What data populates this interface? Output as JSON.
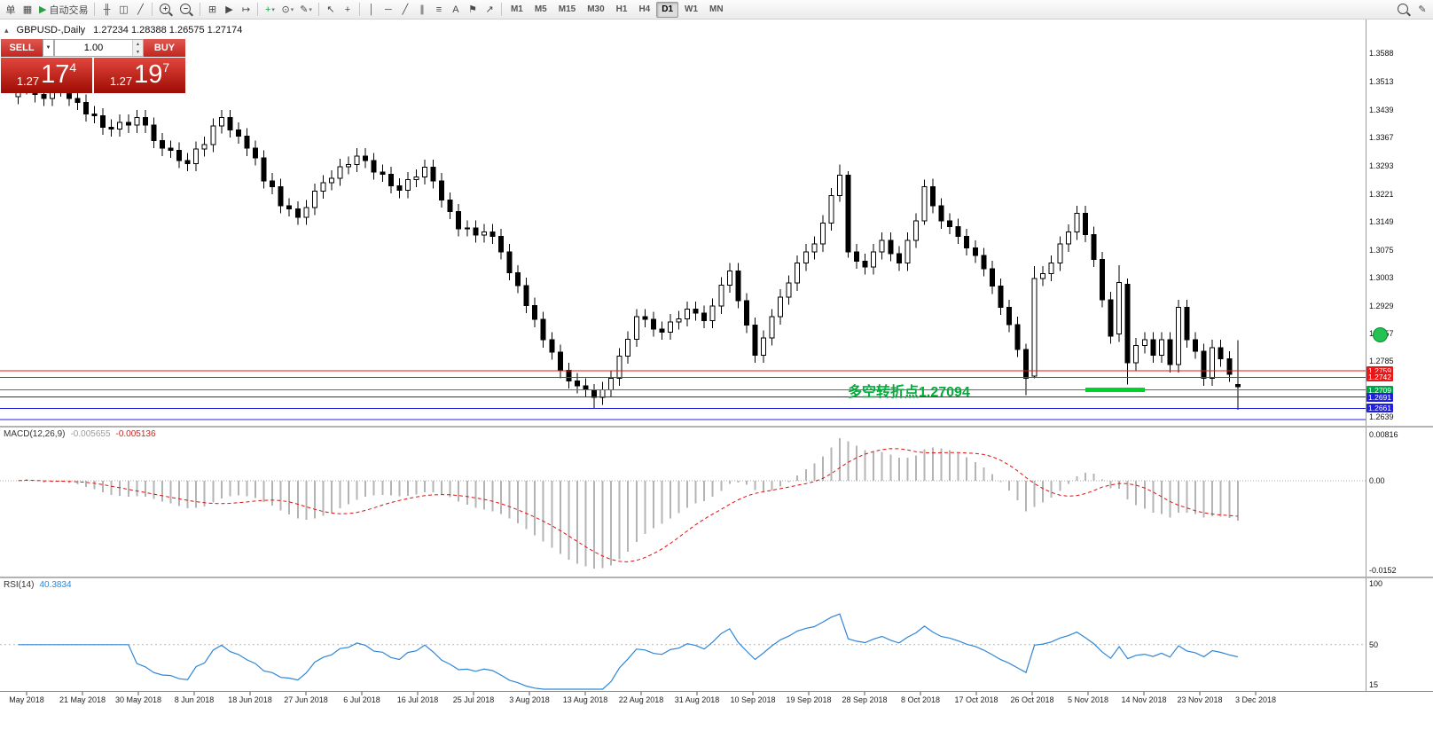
{
  "toolbar": {
    "groups": [
      {
        "items": [
          {
            "name": "new-order-button",
            "label": "单"
          },
          {
            "name": "charts-grid-icon",
            "glyph": "▦"
          },
          {
            "name": "autotrade-button",
            "glyph": "▶",
            "glyph_color": "#2e9e44",
            "label": "自动交易"
          }
        ]
      },
      {
        "items": [
          {
            "name": "bar-chart-icon",
            "glyph": "╫"
          },
          {
            "name": "candlestick-chart-icon",
            "glyph": "◫"
          },
          {
            "name": "line-chart-icon",
            "glyph": "╱"
          }
        ]
      },
      {
        "items": [
          {
            "name": "zoom-in-icon",
            "mag": "+"
          },
          {
            "name": "zoom-out-icon",
            "mag": "−"
          }
        ]
      },
      {
        "items": [
          {
            "name": "tile-windows-icon",
            "glyph": "⊞"
          },
          {
            "name": "auto-scroll-icon",
            "glyph": "▶"
          },
          {
            "name": "chart-shift-icon",
            "glyph": "↦"
          }
        ]
      },
      {
        "items": [
          {
            "name": "indicators-icon",
            "glyph": "+",
            "glyph_color": "#1e9e40",
            "dropdown": true
          },
          {
            "name": "periods-icon",
            "glyph": "⊙",
            "dropdown": true
          },
          {
            "name": "templates-icon",
            "glyph": "✎",
            "dropdown": true
          }
        ]
      },
      {
        "items": [
          {
            "name": "cursor-icon",
            "glyph": "↖"
          },
          {
            "name": "crosshair-icon",
            "glyph": "+"
          }
        ]
      },
      {
        "items": [
          {
            "name": "vline-tool-icon",
            "glyph": "│"
          },
          {
            "name": "hline-tool-icon",
            "glyph": "─"
          },
          {
            "name": "trendline-tool-icon",
            "glyph": "╱"
          },
          {
            "name": "channel-tool-icon",
            "glyph": "∥"
          },
          {
            "name": "fibonacci-tool-icon",
            "glyph": "≡"
          },
          {
            "name": "text-tool-icon",
            "glyph": "A"
          },
          {
            "name": "label-tool-icon",
            "glyph": "⚑"
          },
          {
            "name": "arrows-tool-icon",
            "glyph": "↗"
          }
        ]
      },
      {
        "kind": "tf",
        "items": [
          {
            "name": "tf-m1",
            "label": "M1"
          },
          {
            "name": "tf-m5",
            "label": "M5"
          },
          {
            "name": "tf-m15",
            "label": "M15"
          },
          {
            "name": "tf-m30",
            "label": "M30"
          },
          {
            "name": "tf-h1",
            "label": "H1"
          },
          {
            "name": "tf-h4",
            "label": "H4"
          },
          {
            "name": "tf-d1",
            "label": "D1",
            "active": true
          },
          {
            "name": "tf-w1",
            "label": "W1"
          },
          {
            "name": "tf-mn",
            "label": "MN"
          }
        ]
      },
      {
        "spacer": true,
        "items": [
          {
            "name": "search-icon",
            "mag": ""
          },
          {
            "name": "quick-edit-icon",
            "glyph": "✎"
          }
        ]
      }
    ]
  },
  "chart": {
    "symbol_label": "GBPUSD-,Daily",
    "ohlc": "1.27234 1.28388 1.26575 1.27174",
    "panel_toggle_icon": "▴",
    "trade_panel": {
      "sell_label": "SELL",
      "buy_label": "BUY",
      "volume": "1.00",
      "volume_dd_icon": "▼",
      "spin_up_icon": "▲",
      "spin_down_icon": "▼",
      "bid_small": "1.27",
      "bid_big": "17",
      "bid_sup": "4",
      "ask_small": "1.27",
      "ask_big": "19",
      "ask_sup": "7"
    },
    "annotation": {
      "text": "多空转折点1.27094",
      "color": "#00ae3a"
    },
    "highlight_segment": {
      "from_bar": 126,
      "to_bar": 133,
      "price": 1.27094,
      "color": "#00d22a"
    },
    "marker_circle_color": "#22c351",
    "price_axis_labels": [
      "1.3588",
      "1.3513",
      "1.3439",
      "1.3367",
      "1.3293",
      "1.3221",
      "1.3149",
      "1.3075",
      "1.3003",
      "1.2929",
      "1.2857",
      "1.2785",
      "1.2639"
    ],
    "hlines": [
      {
        "price": 1.2759,
        "color": "#e81717",
        "tag": true
      },
      {
        "price": 1.2742,
        "color": "#e81717",
        "tag": true
      },
      {
        "price": 1.27094,
        "color": "#00a24a",
        "tag": true
      },
      {
        "price": 1.2691,
        "color": "#2020dd",
        "tag": true
      },
      {
        "price": 1.2661,
        "color": "#2020dd",
        "tag": true
      },
      {
        "price": 1.2632,
        "color": "#2020dd",
        "tag": false
      }
    ],
    "date_labels": [
      "May 2018",
      "21 May 2018",
      "30 May 2018",
      "8 Jun 2018",
      "18 Jun 2018",
      "27 Jun 2018",
      "6 Jul 2018",
      "16 Jul 2018",
      "25 Jul 2018",
      "3 Aug 2018",
      "13 Aug 2018",
      "22 Aug 2018",
      "31 Aug 2018",
      "10 Sep 2018",
      "19 Sep 2018",
      "28 Sep 2018",
      "8 Oct 2018",
      "17 Oct 2018",
      "26 Oct 2018",
      "5 Nov 2018",
      "14 Nov 2018",
      "23 Nov 2018",
      "3 Dec 2018"
    ]
  },
  "macd": {
    "label": "MACD(12,26,9)",
    "value_main": "-0.005655",
    "value_signal": "-0.005136",
    "axis_max": "0.00816",
    "axis_zero": "0.00",
    "axis_min": "-0.0152",
    "scale_max": 0.00816,
    "scale_min": -0.0152,
    "fast": 12,
    "slow": 26,
    "signal": 9
  },
  "rsi": {
    "label": "RSI(14)",
    "value": "40.3834",
    "axis_max": "100",
    "axis_mid": "50",
    "axis_min": "15",
    "scale_max": 100,
    "scale_min": 15,
    "period": 14,
    "level": 50
  },
  "chart_data": {
    "type": "candlestick",
    "symbol": "GBPUSD",
    "timeframe": "Daily",
    "first_open": 1.3475,
    "closes": [
      1.35,
      1.3522,
      1.348,
      1.347,
      1.3495,
      1.3505,
      1.347,
      1.346,
      1.343,
      1.3425,
      1.3395,
      1.339,
      1.3408,
      1.34,
      1.342,
      1.34,
      1.336,
      1.334,
      1.3335,
      1.3308,
      1.33,
      1.3338,
      1.335,
      1.3398,
      1.342,
      1.3388,
      1.3372,
      1.334,
      1.3315,
      1.3255,
      1.324,
      1.319,
      1.3182,
      1.316,
      1.3185,
      1.3228,
      1.325,
      1.3262,
      1.3292,
      1.3298,
      1.332,
      1.3308,
      1.3278,
      1.3272,
      1.3242,
      1.323,
      1.3258,
      1.3265,
      1.329,
      1.3255,
      1.3205,
      1.3175,
      1.313,
      1.3132,
      1.3114,
      1.3122,
      1.311,
      1.307,
      1.3015,
      1.2982,
      1.293,
      1.2893,
      1.284,
      1.2808,
      1.276,
      1.2733,
      1.272,
      1.271,
      1.269,
      1.271,
      1.274,
      1.2798,
      1.2842,
      1.29,
      1.2893,
      1.2868,
      1.286,
      1.2887,
      1.2895,
      1.292,
      1.291,
      1.289,
      1.2928,
      1.2983,
      1.302,
      1.2942,
      1.2878,
      1.28,
      1.2845,
      1.29,
      1.2952,
      1.2988,
      1.304,
      1.307,
      1.309,
      1.3145,
      1.3216,
      1.327,
      1.307,
      1.3045,
      1.303,
      1.307,
      1.31,
      1.3065,
      1.304,
      1.31,
      1.315,
      1.324,
      1.319,
      1.315,
      1.3136,
      1.311,
      1.308,
      1.306,
      1.3026,
      1.298,
      1.2925,
      1.288,
      1.2815,
      1.274,
      1.3,
      1.3013,
      1.304,
      1.309,
      1.3121,
      1.317,
      1.3115,
      1.305,
      1.2945,
      1.285,
      1.299,
      1.278,
      1.2825,
      1.284,
      1.28,
      1.284,
      1.2775,
      1.2925,
      1.284,
      1.281,
      1.274,
      1.282,
      1.279,
      1.275,
      1.27174
    ],
    "special_ohlc": {
      "68": [
        1.271,
        1.2725,
        1.2662,
        1.269
      ],
      "97": [
        1.3216,
        1.3298,
        1.32,
        1.327
      ],
      "98": [
        1.327,
        1.328,
        1.3055,
        1.307
      ],
      "107": [
        1.315,
        1.3258,
        1.314,
        1.324
      ],
      "119": [
        1.2815,
        1.283,
        1.2696,
        1.274
      ],
      "120": [
        1.2745,
        1.3032,
        1.274,
        1.3
      ],
      "130": [
        1.2855,
        1.3035,
        1.2835,
        1.299
      ],
      "131": [
        1.2985,
        1.3,
        1.2723,
        1.278
      ],
      "144": [
        1.27234,
        1.28388,
        1.26575,
        1.27174
      ]
    }
  }
}
